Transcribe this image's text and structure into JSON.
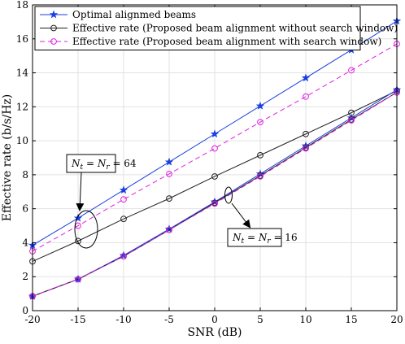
{
  "chart_data": {
    "type": "line",
    "xlabel": "SNR (dB)",
    "ylabel": "Effective rate (b/s/Hz)",
    "xlim": [
      -20,
      20
    ],
    "ylim": [
      0,
      18
    ],
    "x_ticks": [
      -20,
      -15,
      -10,
      -5,
      0,
      5,
      10,
      15,
      20
    ],
    "y_ticks": [
      0,
      2,
      4,
      6,
      8,
      10,
      12,
      14,
      16,
      18
    ],
    "grid": true,
    "legend_position": "top-left",
    "x": [
      -20,
      -15,
      -10,
      -5,
      0,
      5,
      10,
      15,
      20
    ],
    "series": [
      {
        "name": "Optimal alignmed beams",
        "color": "#1a3fe0",
        "marker": "star",
        "dash": "solid",
        "group": "Nt=Nr=64",
        "values": [
          3.85,
          5.45,
          7.1,
          8.75,
          10.4,
          12.05,
          13.7,
          15.35,
          17.05
        ]
      },
      {
        "name": "Effective rate (Proposed beam alignment without search window)",
        "color": "#222222",
        "marker": "circle",
        "dash": "solid",
        "group": "Nt=Nr=64",
        "values": [
          2.9,
          4.1,
          5.4,
          6.6,
          7.9,
          9.15,
          10.4,
          11.65,
          12.95
        ]
      },
      {
        "name": "Effective rate (Proposed beam alignment with search window)",
        "color": "#e020e0",
        "marker": "circle",
        "dash": "dashed",
        "group": "Nt=Nr=64",
        "values": [
          3.5,
          5.0,
          6.55,
          8.05,
          9.55,
          11.1,
          12.6,
          14.15,
          15.7
        ]
      },
      {
        "name": "",
        "color": "#1a3fe0",
        "marker": "star",
        "dash": "solid",
        "group": "Nt=Nr=16",
        "values": [
          0.85,
          1.85,
          3.25,
          4.8,
          6.4,
          8.05,
          9.7,
          11.35,
          13.0
        ]
      },
      {
        "name": "",
        "color": "#222222",
        "marker": "circle",
        "dash": "solid",
        "group": "Nt=Nr=16",
        "values": [
          0.85,
          1.85,
          3.2,
          4.75,
          6.35,
          7.95,
          9.6,
          11.25,
          12.85
        ]
      },
      {
        "name": "",
        "color": "#e020e0",
        "marker": "circle",
        "dash": "dashed",
        "group": "Nt=Nr=16",
        "values": [
          0.85,
          1.85,
          3.2,
          4.75,
          6.3,
          7.9,
          9.55,
          11.2,
          12.85
        ]
      }
    ],
    "annotations": [
      {
        "label": "N_t = N_r = 64",
        "target": "ellipse around x=-15 curves (y≈4–5.5)"
      },
      {
        "label": "N_t = N_r = 16",
        "target": "ellipse around x=1.5 curves (y≈6.5)"
      }
    ]
  }
}
